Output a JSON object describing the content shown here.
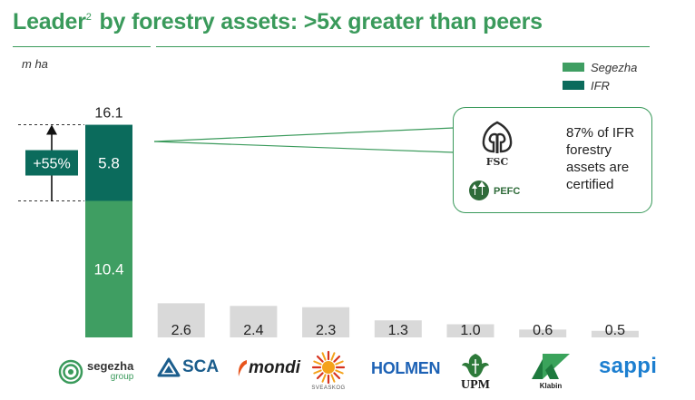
{
  "header": {
    "title_pre": "Leader",
    "title_sup": "2",
    "title_post": " by forestry assets: >5x greater than peers"
  },
  "chart_data": {
    "type": "bar",
    "ylabel": "m ha",
    "categories": [
      "Segezha",
      "SCA",
      "Mondi",
      "Sveaskog",
      "Holmen",
      "UPM",
      "Klabin",
      "Sappi"
    ],
    "series": [
      {
        "name": "Segezha",
        "values": [
          10.4,
          null,
          null,
          null,
          null,
          null,
          null,
          null
        ],
        "color": "#3f9e62"
      },
      {
        "name": "IFR",
        "values": [
          5.8,
          null,
          null,
          null,
          null,
          null,
          null,
          null
        ],
        "color": "#0b6b5c"
      },
      {
        "values": [
          null,
          2.6,
          2.4,
          2.3,
          1.3,
          1.0,
          0.6,
          0.5
        ],
        "color": "#d9d9d9"
      }
    ],
    "totals": [
      "16.1",
      "2.6",
      "2.4",
      "2.3",
      "1.3",
      "1.0",
      "0.6",
      "0.5"
    ],
    "ylim": [
      0,
      16.1
    ],
    "legend_position": "top-right",
    "annotation": {
      "text": "+55%"
    }
  },
  "callout": {
    "text": "87% of IFR forestry assets are certified",
    "fsc_label": "FSC",
    "pefc_label": "PEFC"
  },
  "logos": {
    "segezha_main": "segezha",
    "segezha_sub": "group",
    "sca": "SCA",
    "mondi": "mondi",
    "sveaskog": "SVEASKOG",
    "holmen": "HOLMEN",
    "upm": "UPM",
    "klabin": "Klabin",
    "sappi": "sappi"
  },
  "colors": {
    "accent": "#3a9a5b",
    "ifr": "#0b6b5c",
    "peer": "#d9d9d9"
  }
}
